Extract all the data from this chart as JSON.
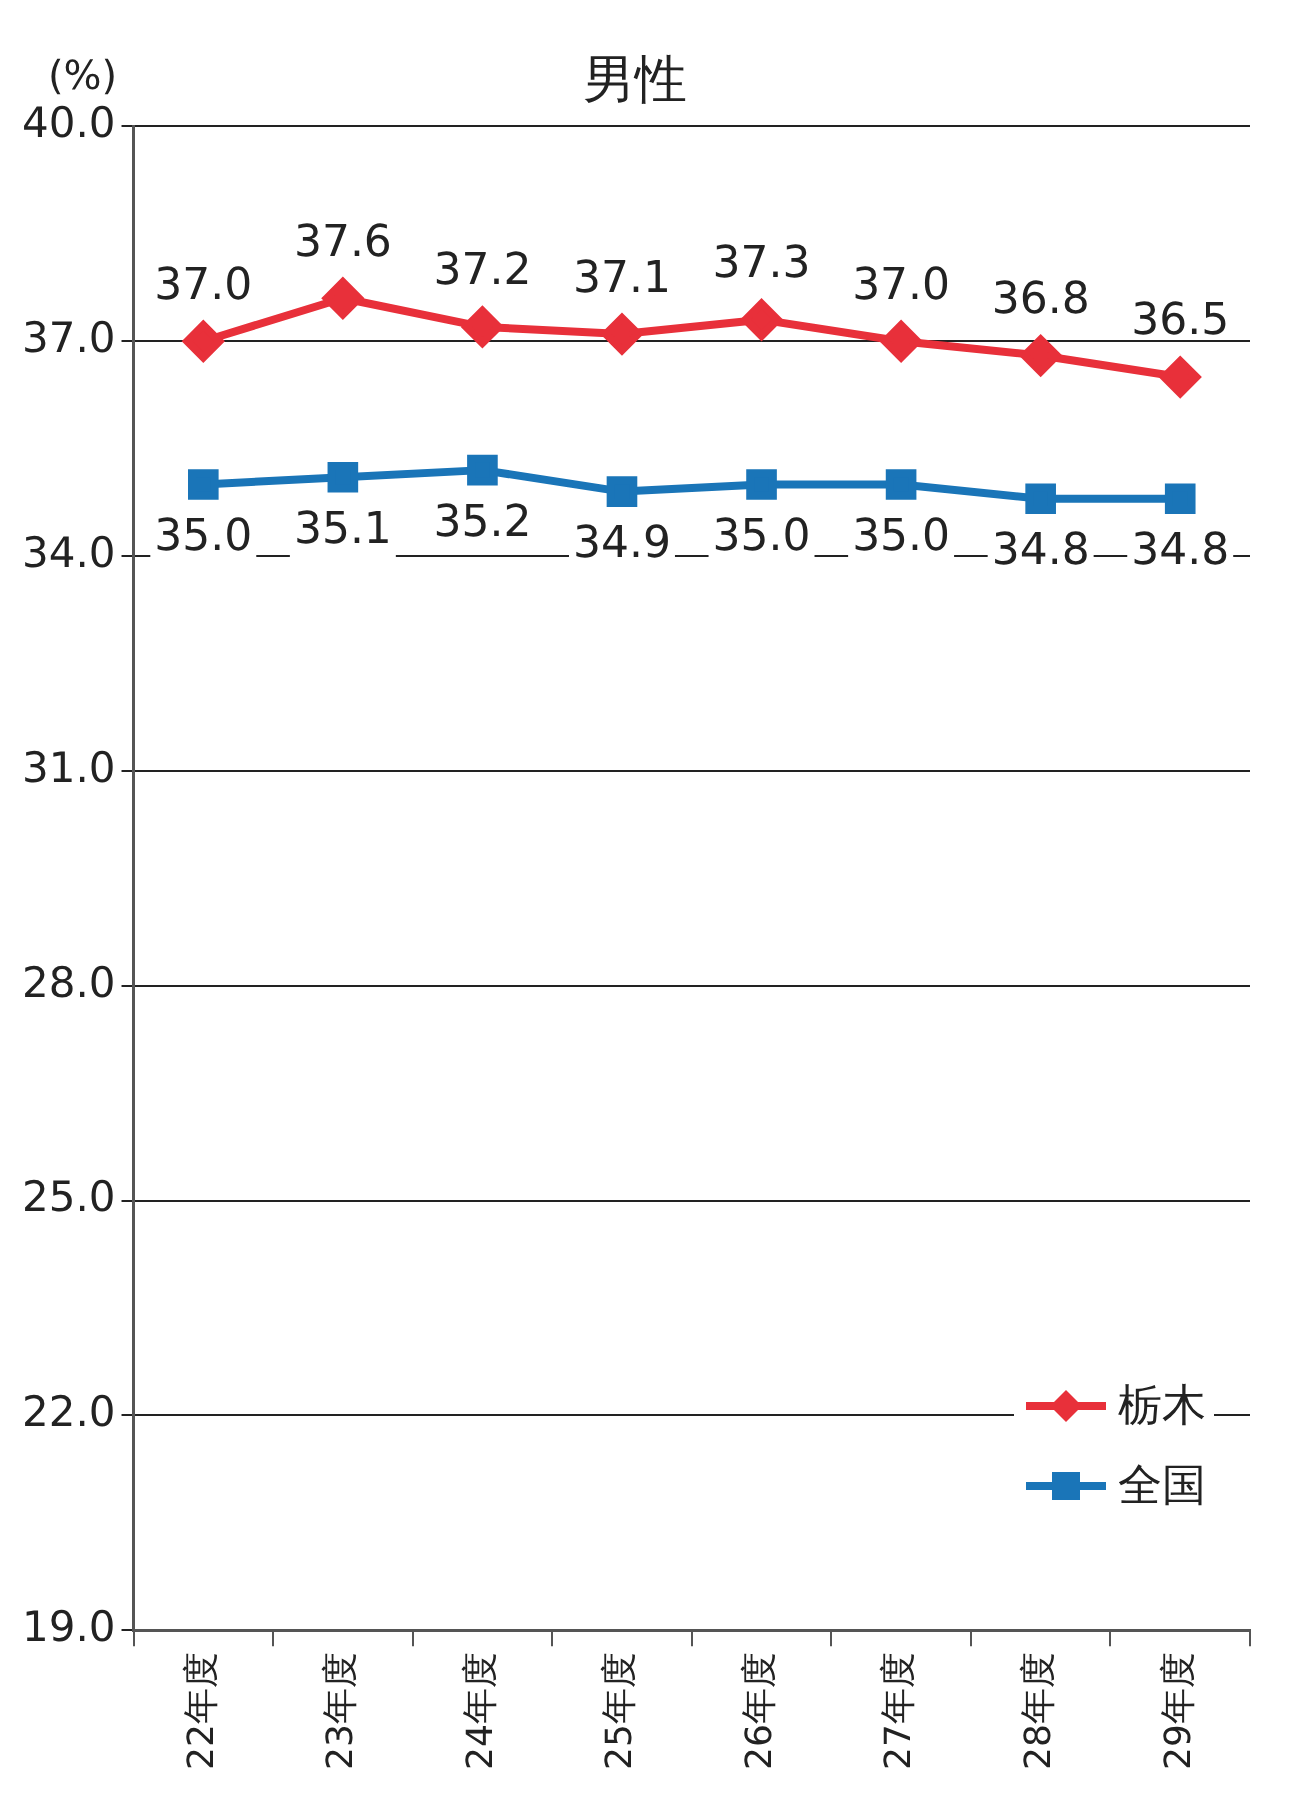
{
  "chart_data": {
    "type": "line",
    "title": "男性",
    "ylabel": "(%)",
    "categories": [
      "22年度",
      "23年度",
      "24年度",
      "25年度",
      "26年度",
      "27年度",
      "28年度",
      "29年度"
    ],
    "series": [
      {
        "name": "栃木",
        "color": "#e8303a",
        "marker": "diamond",
        "values": [
          37.0,
          37.6,
          37.2,
          37.1,
          37.3,
          37.0,
          36.8,
          36.5
        ],
        "value_labels": [
          "37.0",
          "37.6",
          "37.2",
          "37.1",
          "37.3",
          "37.0",
          "36.8",
          "36.5"
        ]
      },
      {
        "name": "全国",
        "color": "#1a75b8",
        "marker": "square",
        "values": [
          35.0,
          35.1,
          35.2,
          34.9,
          35.0,
          35.0,
          34.8,
          34.8
        ],
        "value_labels": [
          "35.0",
          "35.1",
          "35.2",
          "34.9",
          "35.0",
          "35.0",
          "34.8",
          "34.8"
        ]
      }
    ],
    "ylim": [
      19,
      40
    ],
    "yticks": [
      {
        "value": 19,
        "label": "19.0"
      },
      {
        "value": 22,
        "label": "22.0"
      },
      {
        "value": 25,
        "label": "25.0"
      },
      {
        "value": 28,
        "label": "28.0"
      },
      {
        "value": 31,
        "label": "31.0"
      },
      {
        "value": 34,
        "label": "34.0"
      },
      {
        "value": 37,
        "label": "37.0"
      },
      {
        "value": 40,
        "label": "40.0"
      }
    ],
    "grid": "y",
    "legend": "bottom right"
  }
}
